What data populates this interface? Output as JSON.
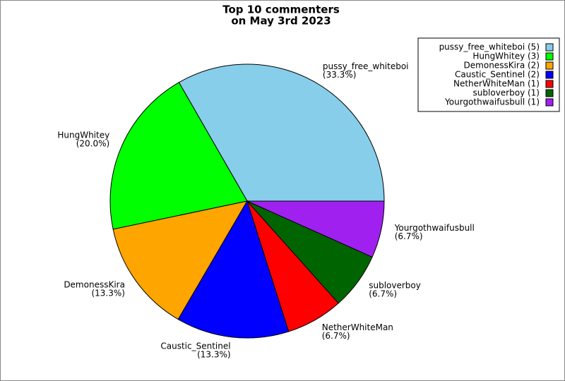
{
  "chart_data": {
    "type": "pie",
    "title": [
      "Top 10 commenters",
      "on May 3rd 2023"
    ],
    "categories": [
      "pussy_free_whiteboi",
      "HungWhitey",
      "DemonessKira",
      "Caustic_Sentinel",
      "NetherWhiteMan",
      "subloverboy",
      "Yourgothwaifusbull"
    ],
    "values": [
      33.3,
      20.0,
      13.3,
      13.3,
      6.7,
      6.7,
      6.7
    ],
    "value_labels": [
      "(33.3%)",
      "(20.0%)",
      "(13.3%)",
      "(13.3%)",
      "(6.7%)",
      "(6.7%)",
      "(6.7%)"
    ],
    "colors": [
      "#87ceeb",
      "#00ff00",
      "#ffa500",
      "#0000ff",
      "#ff0000",
      "#006400",
      "#a020f0"
    ],
    "legend_labels": [
      "pussy_free_whiteboi (5)",
      "HungWhitey (3)",
      "DemonessKira (2)",
      "Caustic_Sentinel (2)",
      "NetherWhiteMan (1)",
      "subloverboy (1)",
      "Yourgothwaifusbull (1)"
    ],
    "legend": "upper right"
  }
}
